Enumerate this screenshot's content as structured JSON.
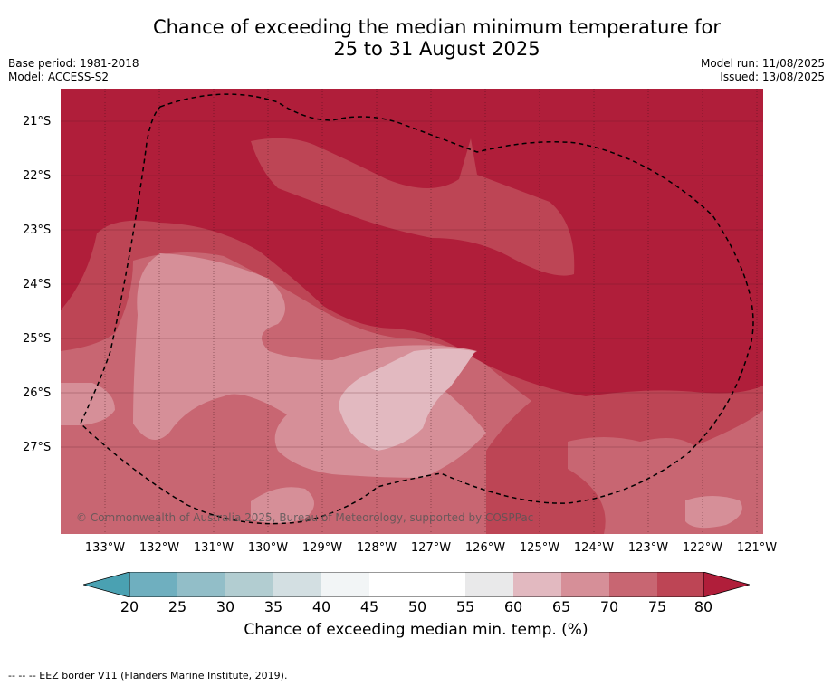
{
  "header": {
    "title_line1": "Chance of exceeding the median minimum temperature for",
    "title_line2": "25 to 31 August 2025",
    "base_period": "Base period: 1981-2018",
    "model": "Model: ACCESS-S2",
    "model_run": "Model run: 11/08/2025",
    "issued": "Issued: 13/08/2025"
  },
  "map": {
    "lat_labels": [
      "21°S",
      "22°S",
      "23°S",
      "24°S",
      "25°S",
      "26°S",
      "27°S"
    ],
    "lon_labels": [
      "133°W",
      "132°W",
      "131°W",
      "130°W",
      "129°W",
      "128°W",
      "127°W",
      "126°W",
      "125°W",
      "124°W",
      "123°W",
      "122°W",
      "121°W"
    ],
    "copyright": "© Commonwealth of Australia 2025, Bureau of Meteorology, supported by COSPPac"
  },
  "colorbar": {
    "ticks": [
      "20",
      "25",
      "30",
      "35",
      "40",
      "45",
      "50",
      "55",
      "60",
      "65",
      "70",
      "75",
      "80"
    ],
    "label": "Chance of exceeding median min. temp. (%)",
    "colors": [
      "#4aa1b2",
      "#6fafbf",
      "#92bec8",
      "#b2cdd1",
      "#d3dfe2",
      "#f2f5f6",
      "#ffffff",
      "#ffffff",
      "#e9e9ea",
      "#e2b9c0",
      "#d68f98",
      "#c86672",
      "#bd4555",
      "#b01e3a"
    ]
  },
  "footnote": "--  --  -- EEZ border V11 (Flanders Marine Institute, 2019)."
}
